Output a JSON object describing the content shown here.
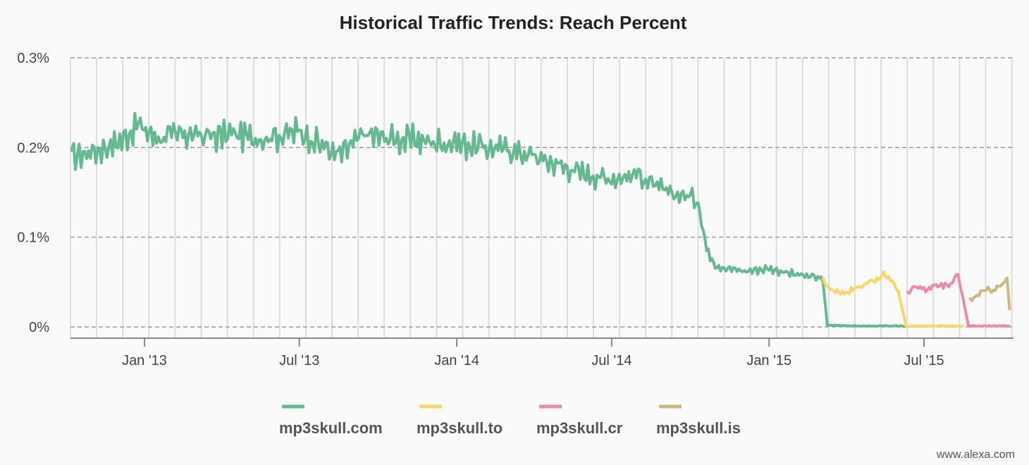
{
  "chart_data": {
    "type": "line",
    "title": "Historical Traffic Trends: Reach Percent",
    "y_ticks": [
      "0.3%",
      "0.2%",
      "0.1%",
      "0%"
    ],
    "ylim": [
      0,
      0.3
    ],
    "x_ticks": [
      "Jan '13",
      "Jul '13",
      "Jan '14",
      "Jul '14",
      "Jan '15",
      "Jul '15"
    ],
    "grid": true,
    "legend_position": "bottom",
    "watermark": "www.alexa.com",
    "series": [
      {
        "name": "mp3skull.com",
        "color": "#66b891",
        "points": [
          [
            "2012-10-08",
            0.19
          ],
          [
            "2012-11-01",
            0.195
          ],
          [
            "2012-12-01",
            0.205
          ],
          [
            "2012-12-25",
            0.225
          ],
          [
            "2013-01-15",
            0.21
          ],
          [
            "2013-02-15",
            0.215
          ],
          [
            "2013-03-15",
            0.212
          ],
          [
            "2013-04-15",
            0.215
          ],
          [
            "2013-05-15",
            0.21
          ],
          [
            "2013-06-01",
            0.212
          ],
          [
            "2013-07-01",
            0.218
          ],
          [
            "2013-08-01",
            0.2
          ],
          [
            "2013-08-15",
            0.19
          ],
          [
            "2013-09-15",
            0.215
          ],
          [
            "2013-10-15",
            0.21
          ],
          [
            "2013-11-15",
            0.208
          ],
          [
            "2013-12-15",
            0.205
          ],
          [
            "2014-01-01",
            0.205
          ],
          [
            "2014-02-01",
            0.2
          ],
          [
            "2014-03-01",
            0.198
          ],
          [
            "2014-04-01",
            0.19
          ],
          [
            "2014-05-01",
            0.18
          ],
          [
            "2014-06-01",
            0.17
          ],
          [
            "2014-07-01",
            0.165
          ],
          [
            "2014-08-01",
            0.17
          ],
          [
            "2014-09-01",
            0.15
          ],
          [
            "2014-10-01",
            0.145
          ],
          [
            "2014-10-10",
            0.14
          ],
          [
            "2014-10-20",
            0.085
          ],
          [
            "2014-11-01",
            0.068
          ],
          [
            "2014-12-01",
            0.062
          ],
          [
            "2015-01-01",
            0.065
          ],
          [
            "2015-02-01",
            0.058
          ],
          [
            "2015-03-01",
            0.055
          ],
          [
            "2015-03-05",
            0.05
          ],
          [
            "2015-03-10",
            0.002
          ],
          [
            "2015-04-15",
            0.001
          ],
          [
            "2015-05-15",
            0.001
          ],
          [
            "2015-06-10",
            0.001
          ]
        ]
      },
      {
        "name": "mp3skull.to",
        "color": "#f7d66b",
        "points": [
          [
            "2015-03-05",
            0.052
          ],
          [
            "2015-03-15",
            0.04
          ],
          [
            "2015-04-01",
            0.038
          ],
          [
            "2015-04-15",
            0.045
          ],
          [
            "2015-05-01",
            0.05
          ],
          [
            "2015-05-15",
            0.058
          ],
          [
            "2015-05-25",
            0.05
          ],
          [
            "2015-06-01",
            0.04
          ],
          [
            "2015-06-10",
            0.001
          ],
          [
            "2015-07-15",
            0.001
          ],
          [
            "2015-08-15",
            0.001
          ]
        ]
      },
      {
        "name": "mp3skull.cr",
        "color": "#ee8aa8",
        "points": [
          [
            "2015-06-12",
            0.036
          ],
          [
            "2015-06-20",
            0.045
          ],
          [
            "2015-07-01",
            0.042
          ],
          [
            "2015-07-15",
            0.045
          ],
          [
            "2015-08-01",
            0.048
          ],
          [
            "2015-08-10",
            0.058
          ],
          [
            "2015-08-15",
            0.035
          ],
          [
            "2015-08-22",
            0.001
          ],
          [
            "2015-09-15",
            0.001
          ],
          [
            "2015-10-08",
            0.001
          ]
        ]
      },
      {
        "name": "mp3skull.is",
        "color": "#cdb77f",
        "points": [
          [
            "2015-08-24",
            0.03
          ],
          [
            "2015-09-01",
            0.035
          ],
          [
            "2015-09-10",
            0.042
          ],
          [
            "2015-09-20",
            0.04
          ],
          [
            "2015-10-01",
            0.05
          ],
          [
            "2015-10-06",
            0.055
          ],
          [
            "2015-10-09",
            0.02
          ]
        ]
      }
    ]
  }
}
